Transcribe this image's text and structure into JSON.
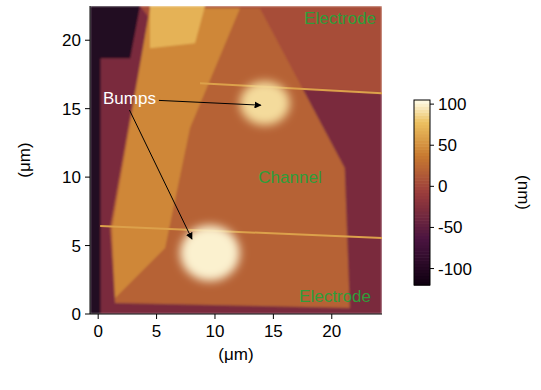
{
  "chart_data": {
    "type": "heatmap",
    "x_label": "(μm)",
    "y_label": "(μm)",
    "xlim": [
      -0.7,
      24.3
    ],
    "ylim": [
      0,
      22.5
    ],
    "xticks": [
      0,
      5,
      10,
      15,
      20
    ],
    "yticks": [
      0,
      5,
      10,
      15,
      20
    ],
    "colorbar": {
      "label": "(nm)",
      "range": [
        -120,
        105
      ],
      "ticks": [
        -100,
        -50,
        0,
        50,
        100
      ]
    },
    "regions": [
      {
        "height": -30,
        "points": [
          [
            -0.7,
            0
          ],
          [
            24.3,
            0
          ],
          [
            24.3,
            22.5
          ],
          [
            -0.7,
            22.5
          ]
        ]
      },
      {
        "height": -100,
        "points": [
          [
            -0.7,
            0
          ],
          [
            0.2,
            0
          ],
          [
            0.2,
            22.5
          ],
          [
            -0.7,
            22.5
          ]
        ]
      },
      {
        "height": -100,
        "points": [
          [
            -0.7,
            22.5
          ],
          [
            3.59,
            22.5
          ],
          [
            2.74,
            18.69
          ],
          [
            -0.7,
            18.69
          ]
        ]
      },
      {
        "height": 5,
        "points": [
          [
            3.59,
            22.5
          ],
          [
            24.3,
            22.5
          ],
          [
            24.3,
            16.13
          ],
          [
            8.72,
            16.86
          ]
        ]
      },
      {
        "height": 20,
        "points": [
          [
            4.44,
            22.34
          ],
          [
            13.85,
            22.34
          ],
          [
            21.11,
            10.66
          ],
          [
            21.54,
            0.44
          ],
          [
            1.45,
            0.8
          ],
          [
            1.03,
            6.28
          ]
        ]
      },
      {
        "height": 45,
        "points": [
          [
            4.44,
            22.34
          ],
          [
            12.14,
            22.34
          ],
          [
            7.86,
            13.58
          ],
          [
            5.73,
            4.82
          ],
          [
            1.45,
            1.17
          ],
          [
            1.2,
            6.28
          ]
        ]
      },
      {
        "height": 70,
        "points": [
          [
            4.44,
            22.5
          ],
          [
            9.15,
            22.5
          ],
          [
            8.29,
            19.78
          ],
          [
            4.44,
            19.42
          ]
        ]
      }
    ],
    "edges": [
      {
        "height": 60,
        "points": [
          [
            0.17,
            6.42
          ],
          [
            24.3,
            5.55
          ]
        ]
      },
      {
        "height": 60,
        "points": [
          [
            8.72,
            16.86
          ],
          [
            24.3,
            16.13
          ]
        ]
      }
    ],
    "bumps": [
      {
        "x": 9.57,
        "y": 4.45,
        "rx": 2.56,
        "ry": 2.04,
        "height": 100
      },
      {
        "x": 14.27,
        "y": 15.4,
        "rx": 2.14,
        "ry": 1.6,
        "height": 90
      }
    ],
    "annotations": [
      "Electrode",
      "Channel",
      "Electrode",
      "Bumps"
    ]
  }
}
